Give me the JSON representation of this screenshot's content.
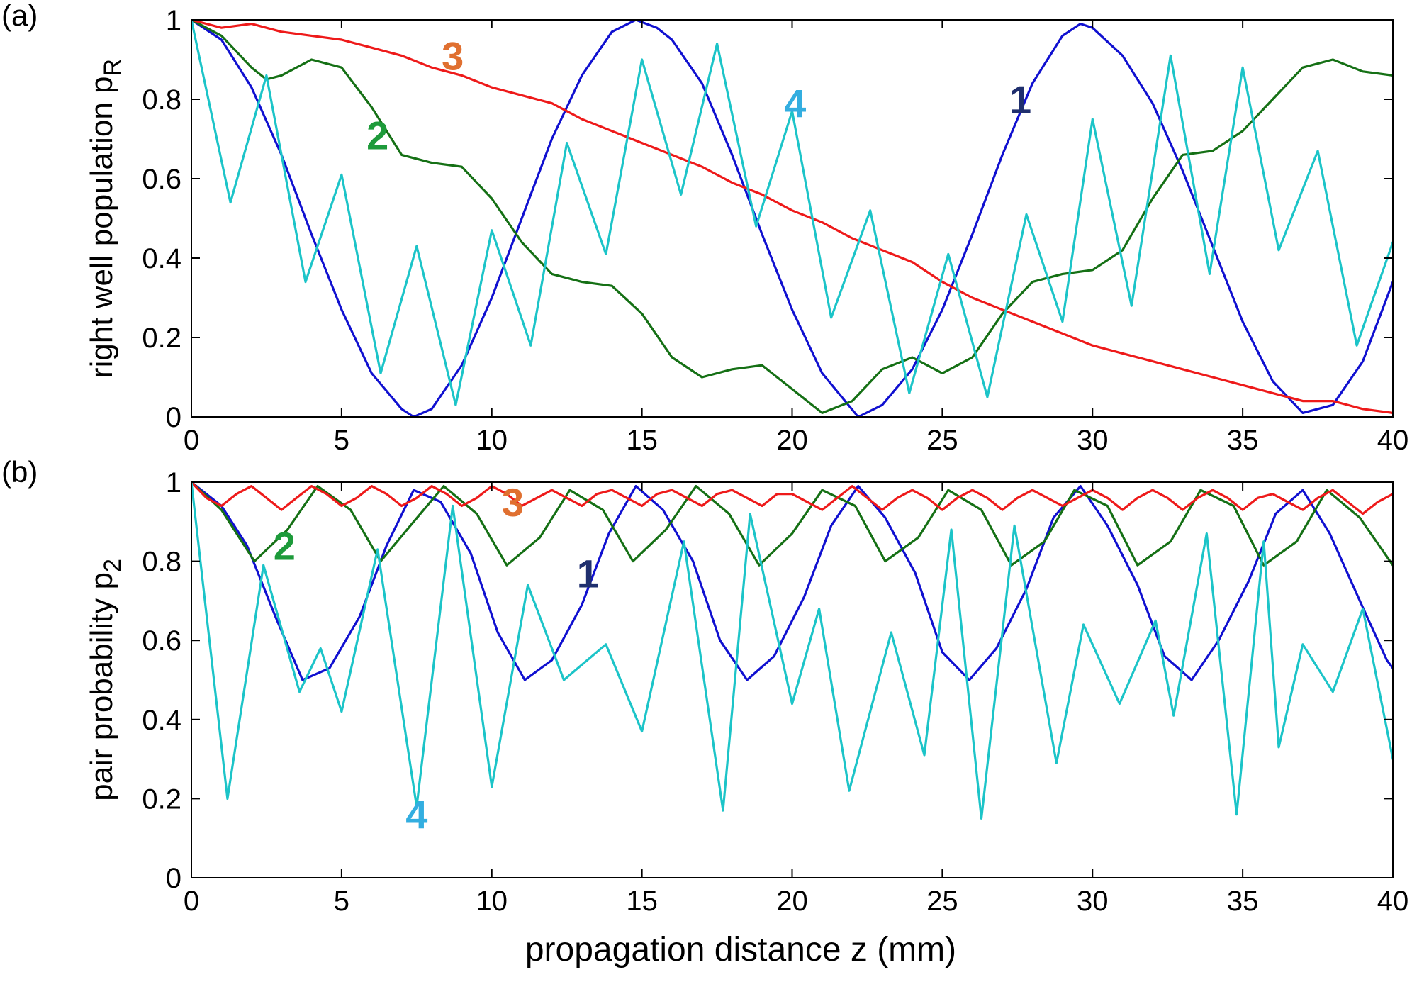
{
  "figure": {
    "xlabel": "propagation distance z (mm)"
  },
  "colors": {
    "1": "#1010d0",
    "2": "#157015",
    "3": "#ee1a1a",
    "4": "#1cc4c8",
    "axis": "#000000"
  },
  "label_colors": {
    "1": "#1f2f6e",
    "2": "#1d9a3a",
    "3": "#e07030",
    "4": "#33aee0"
  },
  "chart_data": [
    {
      "type": "line",
      "panel_label": "(a)",
      "ylabel": "right well population p",
      "ylabel_sub": "R",
      "xlim": [
        0,
        40
      ],
      "ylim": [
        0,
        1
      ],
      "xticks": [
        0,
        5,
        10,
        15,
        20,
        25,
        30,
        35,
        40
      ],
      "yticks": [
        0,
        0.2,
        0.4,
        0.6,
        0.8,
        1
      ],
      "ytick_labels": [
        "0",
        "0.2",
        "0.4",
        "0.6",
        "0.8",
        "1"
      ],
      "series": [
        {
          "name": "1",
          "x": [
            0,
            1,
            2,
            3,
            4,
            5,
            6,
            7,
            7.4,
            8,
            9,
            10,
            11,
            12,
            13,
            14,
            14.8,
            15.5,
            16,
            17,
            18,
            19,
            20,
            21,
            22.2,
            23,
            24,
            25,
            26,
            27,
            28,
            29,
            29.6,
            30,
            31,
            32,
            33,
            34,
            35,
            36,
            37,
            38,
            39,
            40
          ],
          "y": [
            1,
            0.95,
            0.83,
            0.66,
            0.46,
            0.27,
            0.11,
            0.02,
            0,
            0.02,
            0.13,
            0.3,
            0.5,
            0.7,
            0.86,
            0.97,
            1.0,
            0.98,
            0.95,
            0.84,
            0.66,
            0.46,
            0.27,
            0.11,
            0,
            0.03,
            0.12,
            0.27,
            0.46,
            0.66,
            0.84,
            0.96,
            0.99,
            0.98,
            0.91,
            0.79,
            0.62,
            0.43,
            0.24,
            0.09,
            0.01,
            0.03,
            0.14,
            0.34
          ]
        },
        {
          "name": "2",
          "x": [
            0,
            1,
            2,
            2.5,
            3,
            4,
            5,
            6,
            7,
            8,
            9,
            10,
            11,
            12,
            13,
            14,
            15,
            16,
            17,
            18,
            19,
            20,
            21,
            22,
            23,
            24,
            25,
            26,
            27,
            28,
            29,
            30,
            31,
            32,
            33,
            34,
            35,
            36,
            37,
            38,
            39,
            40
          ],
          "y": [
            1,
            0.96,
            0.88,
            0.85,
            0.86,
            0.9,
            0.88,
            0.78,
            0.66,
            0.64,
            0.63,
            0.55,
            0.44,
            0.36,
            0.34,
            0.33,
            0.26,
            0.15,
            0.1,
            0.12,
            0.13,
            0.07,
            0.01,
            0.04,
            0.12,
            0.15,
            0.11,
            0.15,
            0.26,
            0.34,
            0.36,
            0.37,
            0.42,
            0.55,
            0.66,
            0.67,
            0.72,
            0.8,
            0.88,
            0.9,
            0.87,
            0.86
          ]
        },
        {
          "name": "3",
          "x": [
            0,
            1,
            2,
            3,
            4,
            5,
            6,
            7,
            8,
            9,
            10,
            11,
            12,
            13,
            14,
            15,
            16,
            17,
            18,
            19,
            20,
            21,
            22,
            23,
            24,
            25,
            26,
            27,
            28,
            29,
            30,
            31,
            32,
            33,
            34,
            35,
            36,
            37,
            38,
            39,
            40
          ],
          "y": [
            1,
            0.98,
            0.99,
            0.97,
            0.96,
            0.95,
            0.93,
            0.91,
            0.88,
            0.86,
            0.83,
            0.81,
            0.79,
            0.75,
            0.72,
            0.69,
            0.66,
            0.63,
            0.59,
            0.56,
            0.52,
            0.49,
            0.45,
            0.42,
            0.39,
            0.34,
            0.3,
            0.27,
            0.24,
            0.21,
            0.18,
            0.16,
            0.14,
            0.12,
            0.1,
            0.08,
            0.06,
            0.04,
            0.04,
            0.02,
            0.01
          ]
        },
        {
          "name": "4",
          "x": [
            0,
            1.3,
            2.5,
            3.8,
            5,
            6.3,
            7.5,
            8.8,
            10,
            11.3,
            12.5,
            13.8,
            15,
            16.3,
            17.5,
            18.8,
            20,
            21.3,
            22.6,
            23.9,
            25.2,
            26.5,
            27.8,
            29,
            30,
            31.3,
            32.6,
            33.9,
            35,
            36.2,
            37.5,
            38.8,
            40
          ],
          "y": [
            1,
            0.54,
            0.86,
            0.34,
            0.61,
            0.11,
            0.43,
            0.03,
            0.47,
            0.18,
            0.69,
            0.41,
            0.9,
            0.56,
            0.94,
            0.48,
            0.77,
            0.25,
            0.52,
            0.06,
            0.41,
            0.05,
            0.51,
            0.24,
            0.75,
            0.28,
            0.91,
            0.36,
            0.88,
            0.42,
            0.67,
            0.18,
            0.44
          ]
        }
      ],
      "annotations": [
        {
          "text": "1",
          "series": "1",
          "x": 27.6,
          "y": 0.8
        },
        {
          "text": "2",
          "series": "2",
          "x": 6.2,
          "y": 0.71
        },
        {
          "text": "3",
          "series": "3",
          "x": 8.7,
          "y": 0.91
        },
        {
          "text": "4",
          "series": "4",
          "x": 20.1,
          "y": 0.79
        }
      ]
    },
    {
      "type": "line",
      "panel_label": "(b)",
      "ylabel": "pair probability p",
      "ylabel_sub": "2",
      "xlim": [
        0,
        40
      ],
      "ylim": [
        0,
        1
      ],
      "xticks": [
        0,
        5,
        10,
        15,
        20,
        25,
        30,
        35,
        40
      ],
      "yticks": [
        0,
        0.2,
        0.4,
        0.6,
        0.8,
        1
      ],
      "ytick_labels": [
        "0",
        "0.2",
        "0.4",
        "0.6",
        "0.8",
        "1"
      ],
      "series": [
        {
          "name": "1",
          "x": [
            0,
            1,
            1.85,
            2.8,
            3.7,
            4.6,
            5.6,
            6.5,
            7.4,
            8.3,
            9.3,
            10.2,
            11.1,
            12,
            13,
            13.9,
            14.8,
            15.7,
            16.7,
            17.6,
            18.5,
            19.4,
            20.4,
            21.3,
            22.2,
            23.1,
            24.1,
            25,
            25.9,
            26.8,
            27.8,
            28.7,
            29.6,
            30.5,
            31.5,
            32.4,
            33.3,
            34.2,
            35.2,
            36.1,
            37,
            37.9,
            38.9,
            39.8,
            40
          ],
          "y": [
            1,
            0.94,
            0.84,
            0.66,
            0.5,
            0.53,
            0.66,
            0.84,
            0.98,
            0.95,
            0.82,
            0.62,
            0.5,
            0.55,
            0.69,
            0.87,
            0.99,
            0.93,
            0.8,
            0.6,
            0.5,
            0.56,
            0.71,
            0.89,
            0.99,
            0.91,
            0.77,
            0.57,
            0.5,
            0.58,
            0.73,
            0.91,
            0.99,
            0.89,
            0.74,
            0.56,
            0.5,
            0.6,
            0.75,
            0.92,
            0.98,
            0.87,
            0.7,
            0.55,
            0.53
          ]
        },
        {
          "name": "2",
          "x": [
            0,
            1,
            2.1,
            3.2,
            4.2,
            5.3,
            6.3,
            7.4,
            8.4,
            9.5,
            10.5,
            11.6,
            12.6,
            13.7,
            14.7,
            15.8,
            16.8,
            17.9,
            18.9,
            20,
            21,
            22.1,
            23.1,
            24.2,
            25.2,
            26.3,
            27.3,
            28.4,
            29.4,
            30.5,
            31.5,
            32.6,
            33.6,
            34.7,
            35.7,
            36.8,
            37.8,
            38.9,
            40
          ],
          "y": [
            1,
            0.93,
            0.8,
            0.88,
            0.99,
            0.93,
            0.8,
            0.9,
            0.99,
            0.92,
            0.79,
            0.86,
            0.98,
            0.93,
            0.8,
            0.88,
            0.99,
            0.92,
            0.79,
            0.87,
            0.98,
            0.94,
            0.8,
            0.86,
            0.98,
            0.93,
            0.79,
            0.85,
            0.98,
            0.94,
            0.79,
            0.85,
            0.98,
            0.94,
            0.79,
            0.85,
            0.98,
            0.91,
            0.79
          ]
        },
        {
          "name": "3",
          "x": [
            0,
            0.5,
            1,
            1.5,
            2,
            2.5,
            3,
            3.5,
            4,
            4.5,
            5,
            5.5,
            6,
            6.5,
            7,
            7.5,
            8,
            8.5,
            9,
            9.5,
            10,
            10.5,
            11,
            11.5,
            12,
            12.5,
            13,
            13.5,
            14,
            14.5,
            15,
            15.5,
            16,
            16.5,
            17,
            17.5,
            18,
            18.5,
            19,
            19.5,
            20,
            20.5,
            21,
            21.5,
            22,
            22.5,
            23,
            23.5,
            24,
            24.5,
            25,
            25.5,
            26,
            26.5,
            27,
            27.5,
            28,
            28.5,
            29,
            29.5,
            30,
            30.5,
            31,
            31.5,
            32,
            32.5,
            33,
            33.5,
            34,
            34.5,
            35,
            35.5,
            36,
            36.5,
            37,
            37.5,
            38,
            38.5,
            39,
            39.5,
            40
          ],
          "y": [
            1,
            0.96,
            0.94,
            0.97,
            0.99,
            0.96,
            0.93,
            0.96,
            0.99,
            0.97,
            0.94,
            0.96,
            0.99,
            0.97,
            0.94,
            0.96,
            0.99,
            0.97,
            0.94,
            0.96,
            0.99,
            0.97,
            0.94,
            0.96,
            0.98,
            0.96,
            0.94,
            0.97,
            0.98,
            0.96,
            0.94,
            0.97,
            0.98,
            0.96,
            0.94,
            0.97,
            0.98,
            0.96,
            0.94,
            0.97,
            0.97,
            0.95,
            0.93,
            0.96,
            0.99,
            0.96,
            0.93,
            0.96,
            0.98,
            0.96,
            0.93,
            0.96,
            0.98,
            0.96,
            0.93,
            0.96,
            0.98,
            0.96,
            0.94,
            0.96,
            0.98,
            0.96,
            0.93,
            0.96,
            0.98,
            0.96,
            0.93,
            0.96,
            0.98,
            0.96,
            0.93,
            0.96,
            0.97,
            0.95,
            0.93,
            0.96,
            0.98,
            0.95,
            0.92,
            0.95,
            0.97
          ]
        },
        {
          "name": "4",
          "x": [
            0,
            1.2,
            2.4,
            3.6,
            4.3,
            5,
            6.2,
            7.5,
            8.7,
            10,
            11.2,
            12.4,
            13.8,
            15,
            16.4,
            17.7,
            18.6,
            20,
            20.9,
            21.9,
            23.3,
            24.4,
            25.3,
            26.3,
            27.4,
            28.8,
            29.7,
            30.9,
            32.1,
            32.7,
            33.8,
            34.8,
            35.7,
            36.2,
            37,
            38,
            39,
            40
          ],
          "y": [
            1,
            0.2,
            0.79,
            0.47,
            0.58,
            0.42,
            0.83,
            0.18,
            0.94,
            0.23,
            0.74,
            0.5,
            0.59,
            0.37,
            0.85,
            0.17,
            0.92,
            0.44,
            0.68,
            0.22,
            0.62,
            0.31,
            0.88,
            0.15,
            0.89,
            0.29,
            0.64,
            0.44,
            0.65,
            0.41,
            0.87,
            0.16,
            0.85,
            0.33,
            0.59,
            0.47,
            0.68,
            0.3
          ]
        }
      ],
      "annotations": [
        {
          "text": "1",
          "series": "1",
          "x": 13.2,
          "y": 0.77
        },
        {
          "text": "2",
          "series": "2",
          "x": 3.1,
          "y": 0.84
        },
        {
          "text": "3",
          "series": "3",
          "x": 10.7,
          "y": 0.95
        },
        {
          "text": "4",
          "series": "4",
          "x": 7.5,
          "y": 0.16
        }
      ]
    }
  ]
}
